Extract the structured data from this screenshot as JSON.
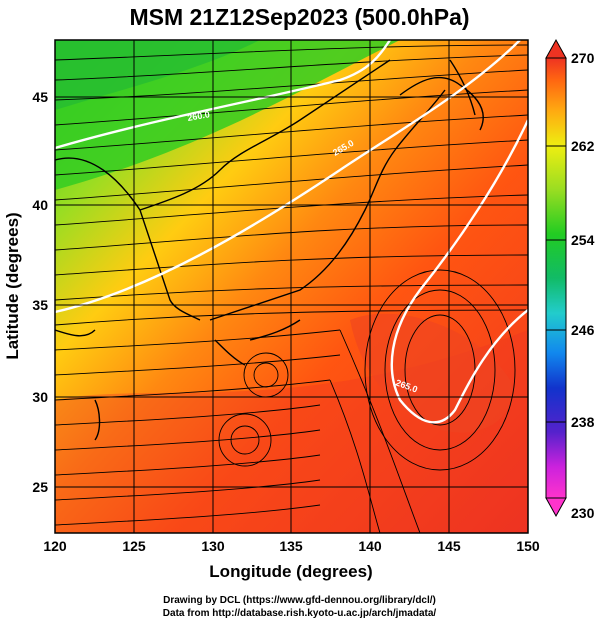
{
  "title": "MSM 21Z12Sep2023 (500.0hPa)",
  "x_axis": {
    "label": "Longitude (degrees)",
    "ticks": [
      "120",
      "125",
      "130",
      "135",
      "140",
      "145",
      "150"
    ],
    "range": [
      120,
      150
    ]
  },
  "y_axis": {
    "label": "Latitude  (degrees)",
    "ticks": [
      "25",
      "30",
      "35",
      "40",
      "45"
    ],
    "range": [
      22.5,
      47.6
    ]
  },
  "colorbar": {
    "ticks": [
      "270",
      "262",
      "254",
      "246",
      "238",
      "230"
    ],
    "range": [
      230,
      270
    ],
    "colors": [
      "#ff33cc",
      "#cc22dd",
      "#5522cc",
      "#1133cc",
      "#1188ee",
      "#22cccc",
      "#11bb66",
      "#22cc22",
      "#99dd22",
      "#eeee11",
      "#ffaa11",
      "#ff6611",
      "#ee3322"
    ]
  },
  "map": {
    "field": "temperature",
    "contours": [
      {
        "label": "260.0",
        "value": 260
      },
      {
        "label": "265.0",
        "value": 265
      },
      {
        "label": "265.0",
        "value": 265
      }
    ],
    "streamlines": "wind"
  },
  "credits": {
    "line1": "Drawing by DCL (https://www.gfd-dennou.org/library/dcl/)",
    "line2": "Data from http://database.rish.kyoto-u.ac.jp/arch/jmadata/"
  }
}
